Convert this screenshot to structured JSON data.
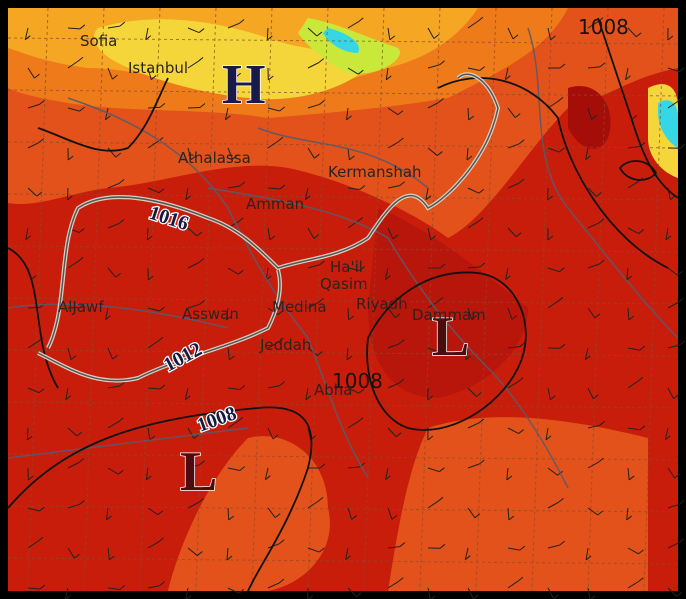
{
  "pressure_centers": [
    {
      "label": "H"
    },
    {
      "label": "L"
    },
    {
      "label": "L"
    }
  ],
  "isobar_labels": [
    "1008",
    "1016",
    "1012",
    "1008",
    "1008"
  ],
  "cities": [
    "Sofia",
    "Istanbul",
    "Athalassa",
    "Amman",
    "Kermanshah",
    "Ha'il",
    "Qasim",
    "Riyadh",
    "Dammam",
    "AlJawf",
    "Asswan",
    "Medina",
    "Jeddah",
    "Abha"
  ]
}
